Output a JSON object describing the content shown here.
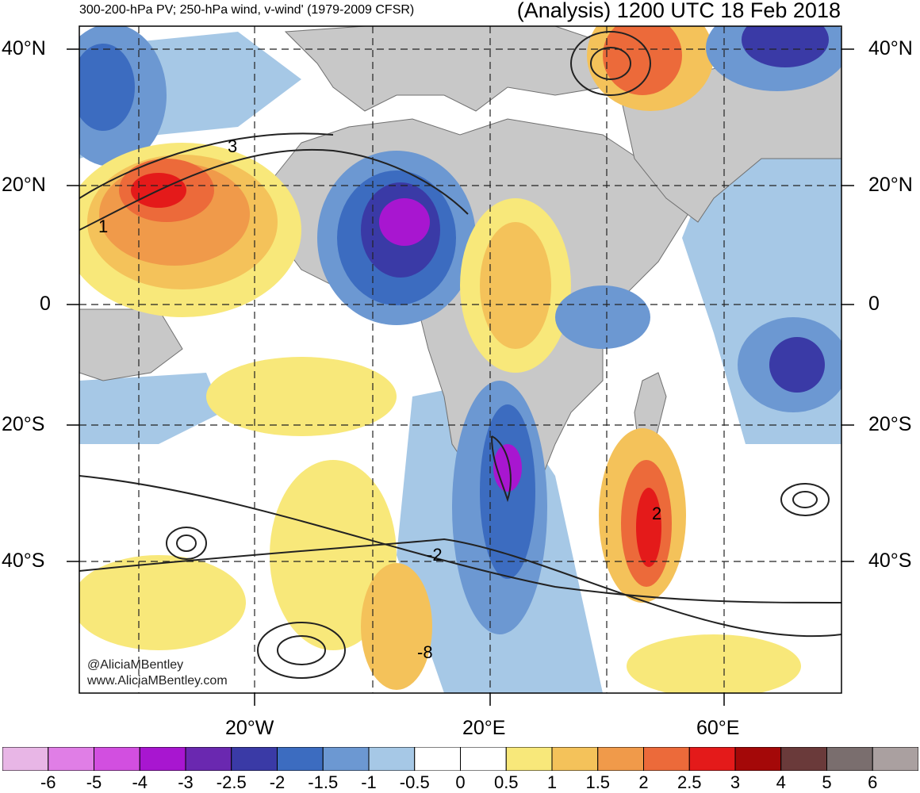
{
  "header": {
    "left_title": "300-200-hPa PV; 250-hPa wind, v-wind' (1979-2009 CFSR)",
    "right_title": "(Analysis) 1200 UTC 18 Feb 2018"
  },
  "lat_labels": [
    "40°N",
    "20°N",
    "0",
    "20°S",
    "40°S"
  ],
  "lon_labels": [
    "20°W",
    "20°E",
    "60°E"
  ],
  "credit": {
    "handle": "@AliciaMBentley",
    "site": "www.AliciaMBentley.com"
  },
  "contour_labels": [
    "3",
    "1",
    "2",
    "-2",
    "-8"
  ],
  "colorbar": {
    "labels": [
      "-6",
      "-5",
      "-4",
      "-3",
      "-2.5",
      "-2",
      "-1.5",
      "-1",
      "-0.5",
      "0",
      "0.5",
      "1",
      "1.5",
      "2",
      "2.5",
      "3",
      "4",
      "5",
      "6"
    ],
    "colors": [
      "#e8b6e6",
      "#e07ee6",
      "#d24fe0",
      "#a816d0",
      "#6a28b0",
      "#3a3aa6",
      "#3c6cc0",
      "#6c98d2",
      "#a6c8e6",
      "#ffffff",
      "#ffffff",
      "#f8e87a",
      "#f4c25a",
      "#f09a4a",
      "#ec6a3a",
      "#e41a1a",
      "#a40808",
      "#6a3a3a",
      "#7a6e6e",
      "#aaa0a0"
    ]
  },
  "map": {
    "land_color": "#c8c8c8",
    "ocean_color": "#ffffff",
    "positive_anomaly_color": "#f09a4a",
    "negative_anomaly_color": "#3c6cc0"
  }
}
